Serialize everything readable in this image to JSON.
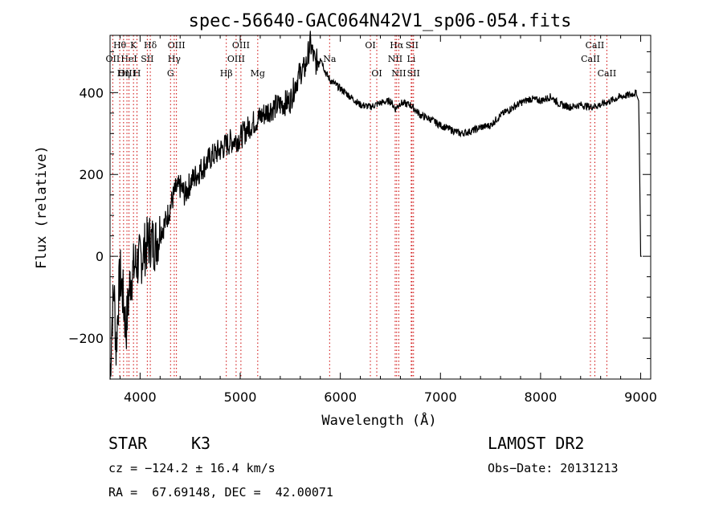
{
  "chart_data": {
    "type": "line",
    "title": "spec-56640-GAC064N42V1_sp06-054.fits",
    "xlabel": "Wavelength (Å)",
    "ylabel": "Flux (relative)",
    "xlim": [
      3700,
      9100
    ],
    "ylim": [
      -300,
      540
    ],
    "x_ticks": [
      4000,
      5000,
      6000,
      7000,
      8000,
      9000
    ],
    "x_tick_labels": [
      "4000",
      "5000",
      "6000",
      "7000",
      "8000",
      "9000"
    ],
    "y_ticks": [
      -200,
      0,
      200,
      400
    ],
    "y_tick_labels": [
      "−200",
      "0",
      "200",
      "400"
    ],
    "grid": false,
    "series": [
      {
        "color": "#000000",
        "x": [
          3700,
          3720,
          3740,
          3760,
          3780,
          3800,
          3830,
          3860,
          3900,
          3950,
          4000,
          4050,
          4100,
          4150,
          4200,
          4250,
          4300,
          4350,
          4400,
          4450,
          4500,
          4600,
          4700,
          4800,
          4900,
          5000,
          5100,
          5200,
          5300,
          5400,
          5500,
          5550,
          5600,
          5650,
          5700,
          5750,
          5800,
          5850,
          5900,
          5950,
          6000,
          6100,
          6200,
          6300,
          6400,
          6500,
          6550,
          6600,
          6700,
          6800,
          6900,
          7000,
          7100,
          7200,
          7300,
          7400,
          7500,
          7600,
          7700,
          7800,
          7900,
          8000,
          8100,
          8200,
          8300,
          8400,
          8500,
          8600,
          8700,
          8800,
          8900,
          8950,
          8980,
          8990,
          9000,
          9010
        ],
        "y": [
          -300,
          -150,
          -80,
          -230,
          -120,
          -40,
          -100,
          -180,
          -60,
          -20,
          -10,
          20,
          40,
          30,
          60,
          80,
          120,
          160,
          170,
          150,
          180,
          210,
          240,
          260,
          280,
          290,
          320,
          340,
          360,
          370,
          380,
          420,
          450,
          460,
          520,
          470,
          490,
          450,
          430,
          420,
          410,
          390,
          370,
          365,
          375,
          380,
          360,
          375,
          370,
          345,
          335,
          320,
          310,
          300,
          305,
          315,
          320,
          345,
          360,
          375,
          385,
          380,
          390,
          370,
          365,
          370,
          365,
          370,
          380,
          390,
          395,
          400,
          380,
          200,
          0,
          0
        ]
      }
    ],
    "line_markers": [
      {
        "label": "Hθ",
        "x": 3797,
        "row": 1,
        "color": "#cc0000"
      },
      {
        "label": "K",
        "x": 3934,
        "row": 1,
        "color": "#cc0000"
      },
      {
        "label": "Hδ",
        "x": 4102,
        "row": 1,
        "color": "#cc0000"
      },
      {
        "label": "OII",
        "x": 3727,
        "row": 2,
        "color": "#cc0000"
      },
      {
        "label": "HeI",
        "x": 3889,
        "row": 2,
        "color": "#cc0000"
      },
      {
        "label": "SII",
        "x": 4072,
        "row": 2,
        "color": "#cc0000"
      },
      {
        "label": "OIII",
        "x": 3869,
        "row": 3,
        "color": "#cc0000"
      },
      {
        "label": "Hη",
        "x": 3835,
        "row": 3,
        "color": "#cc0000"
      },
      {
        "label": "H",
        "x": 3969,
        "row": 3,
        "color": "#cc0000"
      },
      {
        "label": "OIII",
        "x": 4363,
        "row": 1,
        "color": "#cc0000"
      },
      {
        "label": "Hγ",
        "x": 4341,
        "row": 2,
        "color": "#cc0000"
      },
      {
        "label": "G",
        "x": 4304,
        "row": 3,
        "color": "#cc0000"
      },
      {
        "label": "OIII",
        "x": 5007,
        "row": 1,
        "color": "#cc0000"
      },
      {
        "label": "OIII",
        "x": 4959,
        "row": 2,
        "color": "#cc0000"
      },
      {
        "label": "Hβ",
        "x": 4861,
        "row": 3,
        "color": "#cc0000"
      },
      {
        "label": "Mg",
        "x": 5175,
        "row": 3,
        "color": "#cc0000"
      },
      {
        "label": "Na",
        "x": 5893,
        "row": 2,
        "color": "#cc0000"
      },
      {
        "label": "OI",
        "x": 6300,
        "row": 1,
        "color": "#cc0000"
      },
      {
        "label": "OI",
        "x": 6364,
        "row": 3,
        "color": "#cc0000"
      },
      {
        "label": "Hα",
        "x": 6563,
        "row": 1,
        "color": "#cc0000"
      },
      {
        "label": "SII",
        "x": 6716,
        "row": 1,
        "color": "#cc0000"
      },
      {
        "label": "NII",
        "x": 6548,
        "row": 2,
        "color": "#cc0000"
      },
      {
        "label": "Li",
        "x": 6708,
        "row": 2,
        "color": "#cc0000"
      },
      {
        "label": "NII",
        "x": 6584,
        "row": 3,
        "color": "#cc0000"
      },
      {
        "label": "SII",
        "x": 6731,
        "row": 3,
        "color": "#cc0000"
      },
      {
        "label": "CaII",
        "x": 8542,
        "row": 1,
        "color": "#cc0000"
      },
      {
        "label": "CaII",
        "x": 8498,
        "row": 2,
        "color": "#cc0000"
      },
      {
        "label": "CaII",
        "x": 8662,
        "row": 3,
        "color": "#cc0000"
      }
    ]
  },
  "info": {
    "object_class": "STAR",
    "subclass": "K3",
    "survey": "LAMOST DR2",
    "redshift_text": "cz = −124.2 ± 16.4 km/s",
    "obs_date": "Obs−Date: 20131213",
    "coords": "RA =  67.69148, DEC =  42.00071"
  }
}
